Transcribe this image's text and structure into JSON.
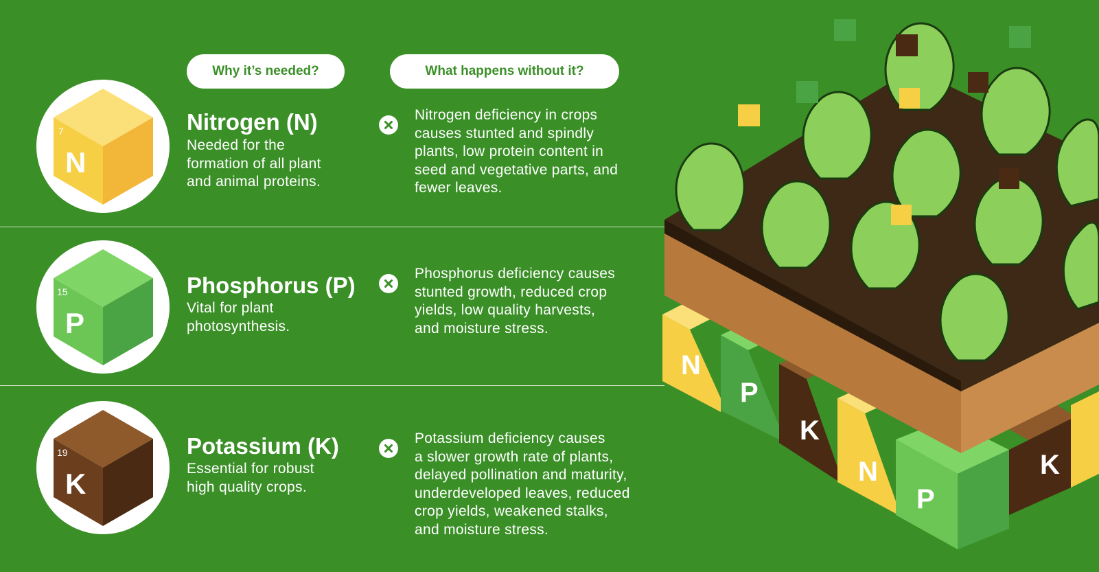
{
  "headers": {
    "why": "Why it’s needed?",
    "without": "What happens without it?"
  },
  "nutrients": [
    {
      "name": "Nitrogen (N)",
      "symbol": "N",
      "atomic_number": "7",
      "need": "Needed for the formation of all plant and animal proteins.",
      "need_lines": [
        "Needed for the",
        "formation of all plant",
        "and animal proteins."
      ],
      "effect_lines": [
        "Nitrogen deficiency in crops",
        "causes stunted and spindly",
        "plants, low protein content in",
        "seed and vegetative parts, and",
        "fewer leaves."
      ],
      "color_light": "#f7cf45",
      "color_dark": "#f2b638"
    },
    {
      "name": "Phosphorus (P)",
      "symbol": "P",
      "atomic_number": "15",
      "need_lines": [
        "Vital for plant",
        "photosynthesis."
      ],
      "effect_lines": [
        "Phosphorus deficiency causes",
        "stunted growth, reduced crop",
        "yields, low quality harvests,",
        "and moisture stress."
      ],
      "color_light": "#6cc655",
      "color_dark": "#4ba443"
    },
    {
      "name": "Potassium (K)",
      "symbol": "K",
      "atomic_number": "19",
      "need_lines": [
        "Essential for robust",
        "high quality crops."
      ],
      "effect_lines": [
        "Potassium deficiency causes",
        "a slower growth rate of plants,",
        "delayed pollination and maturity,",
        "underdeveloped leaves, reduced",
        "crop yields, weakened stalks,",
        "and moisture stress."
      ],
      "color_light": "#7a4a22",
      "color_dark": "#4a2a12"
    }
  ],
  "colors": {
    "background": "#3a8f27",
    "soil": "#3d2916",
    "subsoil": "#c98c4c",
    "lettuce": "#8ccf5a"
  }
}
